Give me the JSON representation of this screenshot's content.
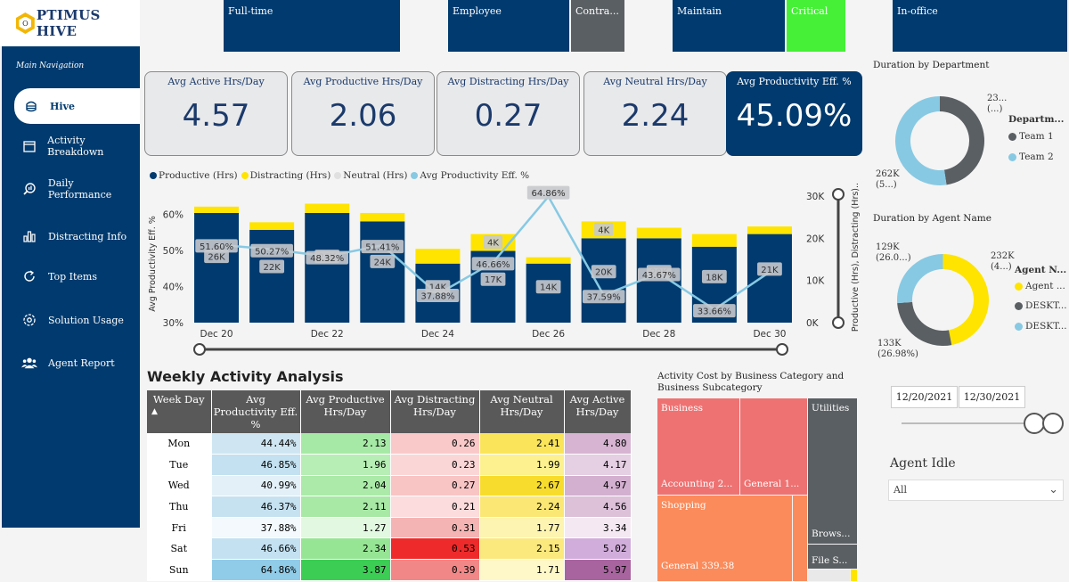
{
  "app": {
    "logo_text": "PTIMUS HIVE",
    "logo_letter": "O"
  },
  "navigation": {
    "title": "Main Navigation",
    "items": [
      {
        "label": "Hive",
        "icon": "hive-icon",
        "active": true
      },
      {
        "label": "Activity Breakdown",
        "icon": "calendar-icon"
      },
      {
        "label": "Daily Performance",
        "icon": "magnify-chart-icon"
      },
      {
        "label": "Distracting Info",
        "icon": "bar-chart-icon"
      },
      {
        "label": "Top Items",
        "icon": "refresh-icon"
      },
      {
        "label": "Solution Usage",
        "icon": "gear-icon"
      },
      {
        "label": "Agent Report",
        "icon": "users-icon"
      }
    ]
  },
  "filters": {
    "employment": "Full-time",
    "role_employee": "Employee",
    "role_contractor": "Contra...",
    "priority": "Maintain",
    "critical": "Critical",
    "location": "In-office"
  },
  "kpis": [
    {
      "label": "Avg Active Hrs/Day",
      "value": "4.57"
    },
    {
      "label": "Avg Productive Hrs/Day",
      "value": "2.06"
    },
    {
      "label": "Avg Distracting Hrs/Day",
      "value": "0.27"
    },
    {
      "label": "Avg Neutral Hrs/Day",
      "value": "2.24"
    },
    {
      "label": "Avg Productivity Eff. %",
      "value": "45.09%"
    }
  ],
  "legend": {
    "productive": "Productive (Hrs)",
    "distracting": "Distracting (Hrs)",
    "neutral": "Neutral (Hrs)",
    "efficiency": "Avg Productivity Eff. %"
  },
  "chart_data": [
    {
      "type": "bar",
      "title": "",
      "ylabel": "Avg Productivity Eff. %",
      "y2label": "Productive (Hrs), Distracting (Hrs)...",
      "ylim": [
        30,
        65
      ],
      "y2lim": [
        0,
        30000
      ],
      "y_ticks": [
        "60%",
        "50%",
        "40%",
        "30%"
      ],
      "y2_ticks": [
        "30K",
        "20K",
        "10K",
        "0K"
      ],
      "x_ticks": [
        "Dec 20",
        "Dec 22",
        "Dec 24",
        "Dec 26",
        "Dec 28",
        "Dec 30"
      ],
      "categories": [
        "Dec 20",
        "Dec 21",
        "Dec 22",
        "Dec 23",
        "Dec 24",
        "Dec 25",
        "Dec 26",
        "Dec 27",
        "Dec 28",
        "Dec 29",
        "Dec 30"
      ],
      "series": [
        {
          "name": "Productive (Hrs)",
          "values": [
            26000,
            22000,
            26000,
            24000,
            14000,
            17000,
            14000,
            20000,
            20000,
            18000,
            21000
          ],
          "labels": [
            "26K",
            "22K",
            "26K",
            "24K",
            "14K",
            "17K",
            "14K",
            "20K",
            "20K",
            "18K",
            "21K"
          ]
        },
        {
          "name": "Distracting (Hrs)",
          "values": [
            1500,
            1800,
            2200,
            2000,
            3500,
            4000,
            1500,
            4000,
            2500,
            3000,
            1800
          ],
          "labels": [
            "",
            "",
            "",
            "",
            "",
            "4K",
            "",
            "4K",
            "",
            "",
            ""
          ]
        },
        {
          "name": "Avg Productivity Eff. %",
          "values": [
            51.6,
            50.27,
            48.32,
            51.41,
            37.88,
            46.66,
            64.86,
            37.59,
            43.67,
            33.66,
            44.0
          ],
          "labels": [
            "51.60%",
            "50.27%",
            "48.32%",
            "51.41%",
            "37.88%",
            "46.66%",
            "64.86%",
            "37.59%",
            "43.67%",
            "33.66%",
            ""
          ]
        }
      ]
    },
    {
      "type": "pie",
      "title": "Duration by Department",
      "legend_title": "Departm...",
      "categories": [
        "Team 1",
        "Team 2"
      ],
      "values": [
        238,
        262
      ],
      "labels": [
        "23...",
        "262K"
      ],
      "sublabels": [
        "(...)",
        "(5...)"
      ]
    },
    {
      "type": "pie",
      "title": "Duration by Agent Name",
      "legend_title": "Agent N...",
      "categories": [
        "Agent ...",
        "DESKT...",
        "DESKT..."
      ],
      "values": [
        232,
        133,
        129
      ],
      "labels": [
        "232K",
        "133K",
        "129K"
      ],
      "sublabels": [
        "(4...)",
        "(26.98%)",
        "(26.0...)"
      ]
    },
    {
      "type": "heatmap",
      "title": "Activity Cost by Business Category and Business Subcategory",
      "categories": [
        "Business",
        "Accounting 2...",
        "General 1...",
        "Utilities",
        "Shopping",
        "General 339.38",
        "Brows...",
        "File S..."
      ],
      "values": [
        null,
        null,
        null,
        null,
        null,
        339.38,
        null,
        null
      ]
    }
  ],
  "weekly": {
    "title": "Weekly Activity Analysis",
    "headers": [
      "Week Day",
      "Avg Productivity Eff. %",
      "Avg Productive Hrs/Day",
      "Avg Distracting Hrs/Day",
      "Avg Neutral Hrs/Day",
      "Avg Active Hrs/Day"
    ],
    "sort_indicator": "▲",
    "rows": [
      [
        "Mon",
        "44.44%",
        "2.13",
        "0.26",
        "2.41",
        "4.80"
      ],
      [
        "Tue",
        "46.85%",
        "1.96",
        "0.23",
        "1.99",
        "4.17"
      ],
      [
        "Wed",
        "40.99%",
        "2.04",
        "0.27",
        "2.67",
        "4.97"
      ],
      [
        "Thu",
        "46.37%",
        "2.11",
        "0.21",
        "2.24",
        "4.56"
      ],
      [
        "Fri",
        "37.88%",
        "1.27",
        "0.31",
        "1.77",
        "3.34"
      ],
      [
        "Sat",
        "46.66%",
        "2.34",
        "0.53",
        "2.15",
        "5.02"
      ],
      [
        "Sun",
        "64.86%",
        "3.87",
        "0.39",
        "1.71",
        "5.97"
      ]
    ],
    "cell_colors": [
      [
        "#cfe6f2",
        "#a6e9a6",
        "#f9c9c9",
        "#fae45a",
        "#d6b4d2"
      ],
      [
        "#c3e1f1",
        "#b7eeb5",
        "#fbd6d6",
        "#fcf18e",
        "#e5cfe3"
      ],
      [
        "#e3f0f7",
        "#abeaa8",
        "#f8c4c4",
        "#f8dc2d",
        "#d3b0cf"
      ],
      [
        "#c6e2f1",
        "#a8e9a6",
        "#fcdcdc",
        "#fbe774",
        "#dcc1d9"
      ],
      [
        "#f3f9fc",
        "#e3f8e1",
        "#f5b4b4",
        "#fdf4b1",
        "#f4e9f3"
      ],
      [
        "#c3e1f1",
        "#96e594",
        "#ee2a2a",
        "#fbe97d",
        "#d1addb"
      ],
      [
        "#90cce8",
        "#3ccd55",
        "#f28787",
        "#fef8c8",
        "#a8649f"
      ]
    ]
  },
  "date_range": {
    "start": "12/20/2021",
    "end": "12/30/2021"
  },
  "agent_idle": {
    "title": "Agent Idle",
    "selected": "All"
  },
  "colors": {
    "navy": "#003a6e",
    "yellow": "#ffe400",
    "light_blue": "#87c9e3",
    "grey": "#5a5f63"
  }
}
